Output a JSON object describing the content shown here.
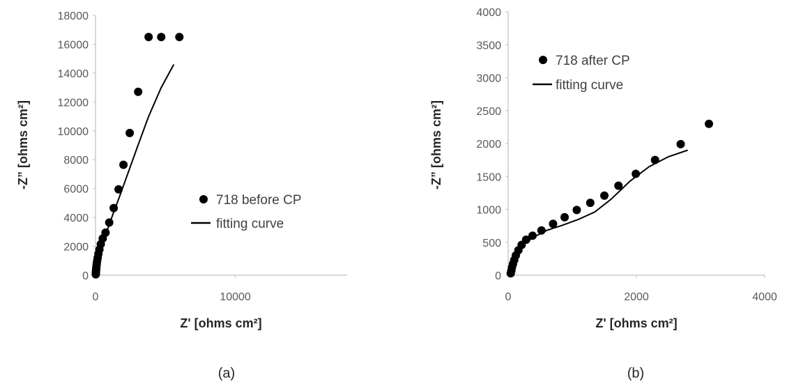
{
  "chart_data": [
    {
      "type": "scatter",
      "caption": "(a)",
      "xlabel": "Z' [ohms cm²]",
      "ylabel": "-Z” [ohms cm²]",
      "xlim": [
        0,
        18000
      ],
      "ylim": [
        0,
        18000
      ],
      "xticks": [
        0,
        10000
      ],
      "yticks": [
        0,
        2000,
        4000,
        6000,
        8000,
        10000,
        12000,
        14000,
        16000,
        18000
      ],
      "grid": false,
      "legend_position": "center-right",
      "series": [
        {
          "name": "718 before CP",
          "kind": "scatter",
          "color": "#000000",
          "x": [
            20,
            25,
            30,
            35,
            45,
            55,
            70,
            90,
            120,
            160,
            210,
            280,
            380,
            520,
            720,
            980,
            1300,
            1650,
            2000,
            2450,
            3050,
            3800,
            4700,
            6000
          ],
          "y": [
            60,
            120,
            190,
            280,
            380,
            500,
            640,
            800,
            1000,
            1220,
            1480,
            1780,
            2150,
            2550,
            2950,
            3650,
            4650,
            5950,
            7650,
            9850,
            12700,
            16500,
            16500,
            16500
          ]
        },
        {
          "name": "fitting curve",
          "kind": "line",
          "color": "#000000",
          "x": [
            10,
            60,
            150,
            300,
            500,
            800,
            1200,
            1700,
            2300,
            3000,
            3800,
            4700,
            5600
          ],
          "y": [
            0,
            450,
            900,
            1500,
            2150,
            3000,
            4100,
            5400,
            7000,
            8900,
            11000,
            13000,
            14600
          ]
        }
      ]
    },
    {
      "type": "scatter",
      "caption": "(b)",
      "xlabel": "Z' [ohms cm²]",
      "ylabel": "-Z” [ohms cm²]",
      "xlim": [
        0,
        4000
      ],
      "ylim": [
        0,
        4000
      ],
      "xticks": [
        0,
        2000,
        4000
      ],
      "yticks": [
        0,
        500,
        1000,
        1500,
        2000,
        2500,
        3000,
        3500,
        4000
      ],
      "grid": false,
      "legend_position": "top-left",
      "series": [
        {
          "name": "718 after CP",
          "kind": "scatter",
          "color": "#000000",
          "x": [
            40,
            50,
            60,
            75,
            95,
            120,
            160,
            210,
            280,
            380,
            520,
            700,
            880,
            1070,
            1280,
            1500,
            1720,
            1990,
            2290,
            2690,
            3130
          ],
          "y": [
            30,
            70,
            120,
            170,
            230,
            300,
            380,
            460,
            540,
            600,
            680,
            780,
            880,
            990,
            1100,
            1210,
            1360,
            1540,
            1750,
            1990,
            2300
          ]
        },
        {
          "name": "fitting curve",
          "kind": "line",
          "color": "#000000",
          "x": [
            40,
            80,
            150,
            250,
            400,
            600,
            850,
            1100,
            1350,
            1600,
            1900,
            2200,
            2500,
            2800
          ],
          "y": [
            0,
            200,
            350,
            480,
            580,
            680,
            760,
            850,
            960,
            1150,
            1430,
            1650,
            1800,
            1900
          ]
        }
      ]
    }
  ]
}
